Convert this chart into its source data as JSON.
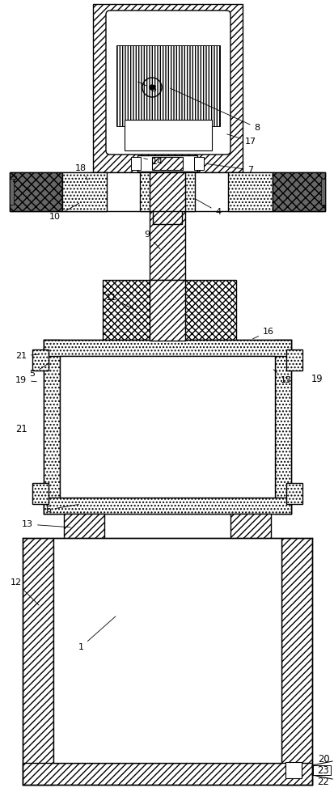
{
  "bg": "#ffffff",
  "K": "#000000",
  "W": "#ffffff",
  "fig_w": 4.14,
  "fig_h": 10.0,
  "dpi": 100,
  "gray": "#666666"
}
